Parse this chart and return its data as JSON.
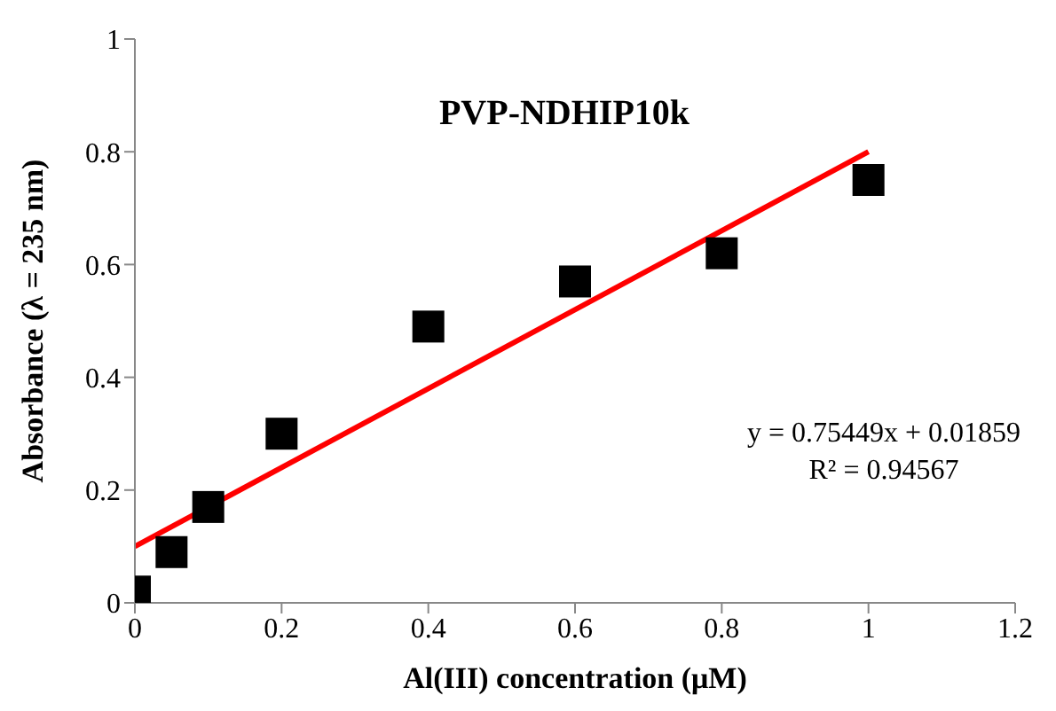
{
  "chart_data": {
    "type": "scatter",
    "title": "PVP-NDHIP10k",
    "xlabel": "Al(III) concentration (μM)",
    "ylabel": "Absorbance (λ = 235 nm)",
    "annotations": [
      "y = 0.75449x + 0.01859",
      "R² = 0.94567"
    ],
    "x": [
      0,
      0.05,
      0.1,
      0.2,
      0.4,
      0.6,
      0.8,
      1.0
    ],
    "series": [
      {
        "color": "#000000",
        "marker": "square",
        "values": [
          0.02,
          0.09,
          0.17,
          0.3,
          0.49,
          0.57,
          0.62,
          0.75
        ]
      },
      {
        "type": "line",
        "color": "#ff0000",
        "x": [
          0,
          1.0
        ],
        "values": [
          0.1,
          0.8
        ],
        "marker": "none",
        "line_style": "solid"
      }
    ],
    "xlim": [
      0,
      1.2
    ],
    "xticks": [
      0,
      0.2,
      0.4,
      0.6,
      0.8,
      1,
      1.2
    ],
    "ylim": [
      0,
      1
    ],
    "yticks": [
      0,
      0.2,
      0.4,
      0.6,
      0.8,
      1
    ],
    "grid": false,
    "legend": false
  }
}
